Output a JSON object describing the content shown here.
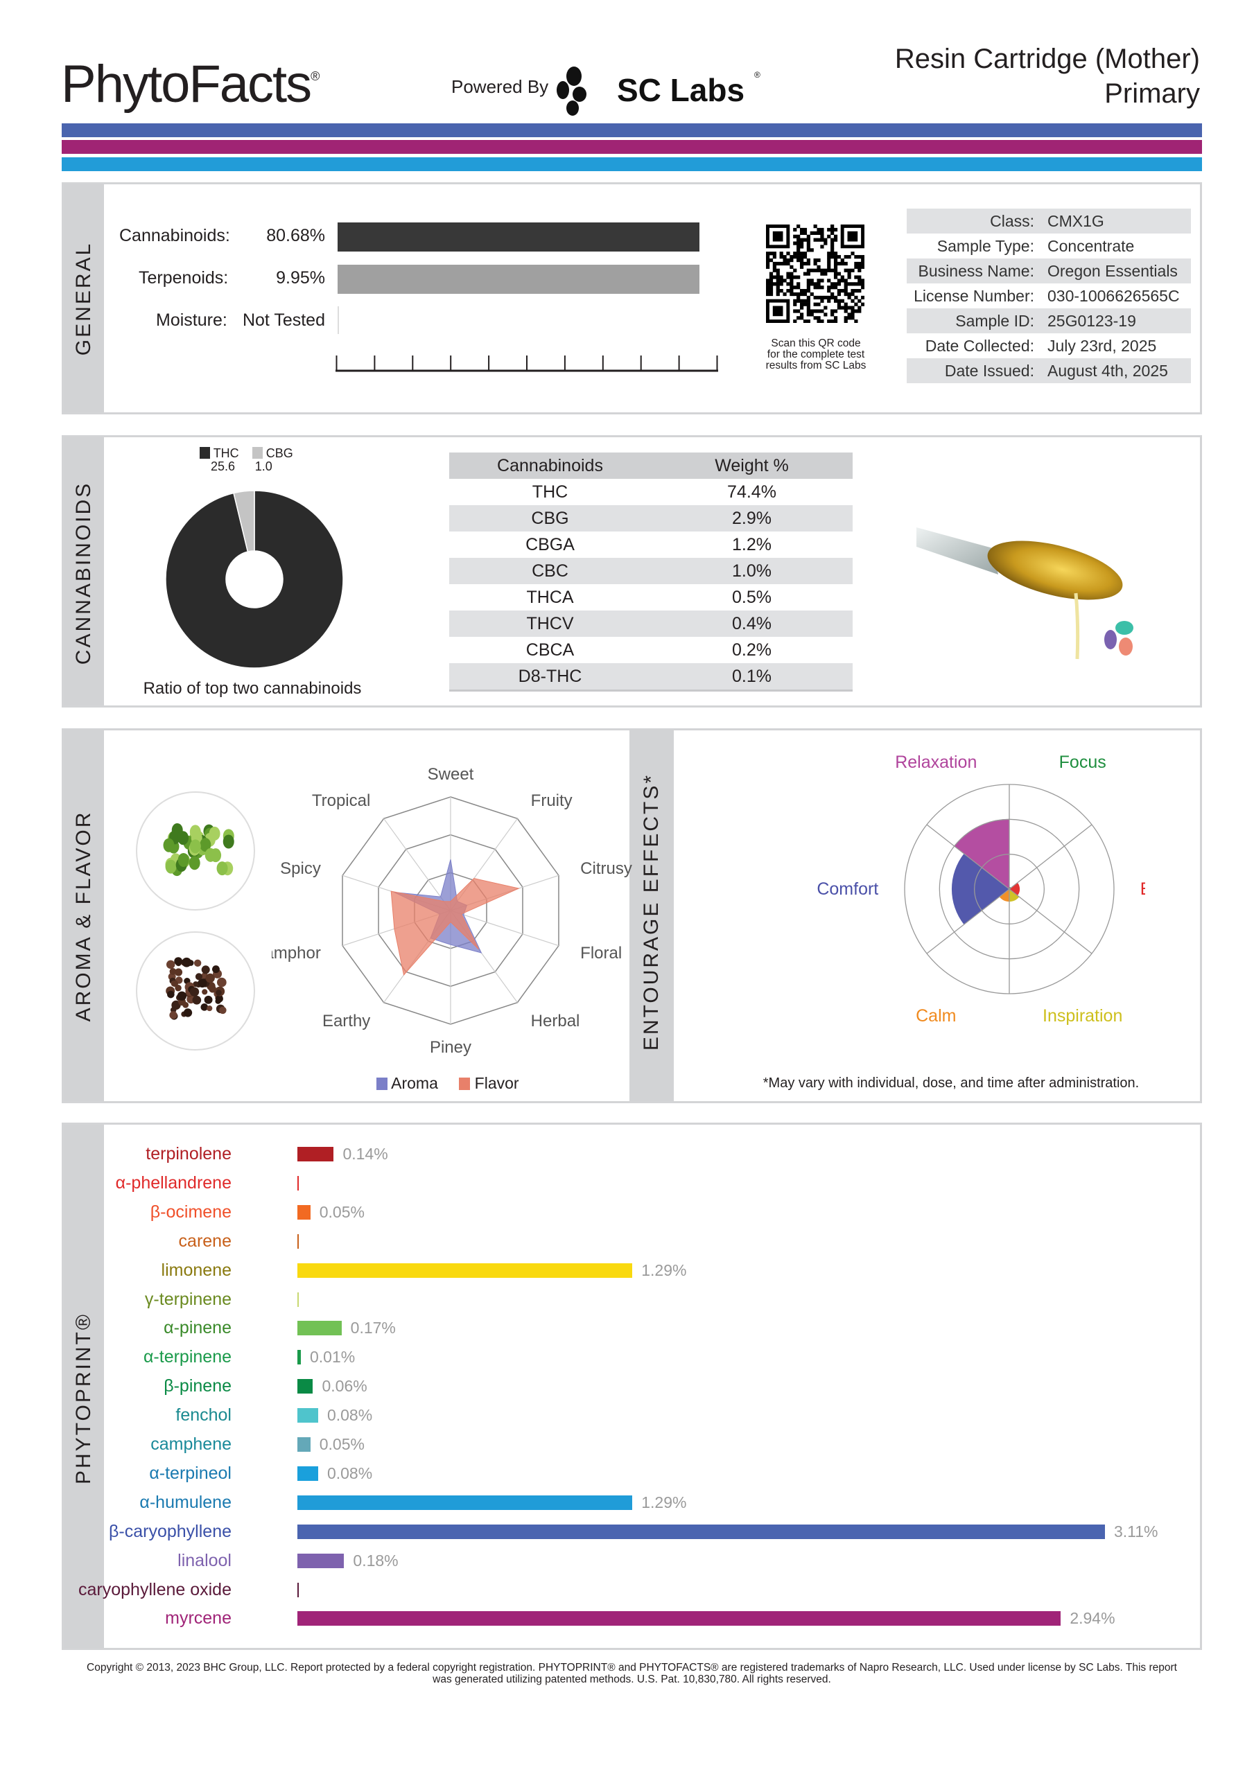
{
  "header": {
    "logo_text": "PhytoFacts",
    "logo_mark": "®",
    "powered_by": "Powered By",
    "lab_logo_text": "SC Labs",
    "lab_logo_mark": "®",
    "product_name": "Resin Cartridge (Mother)",
    "product_subtitle": "Primary",
    "stripe_colors": [
      "#4a64ae",
      "#a02474",
      "#229cd8"
    ]
  },
  "general": {
    "section_label": "GENERAL",
    "cannabinoids_label": "Cannabinoids:",
    "cannabinoids_value": "80.68%",
    "terpenoids_label": "Terpenoids:",
    "terpenoids_value": "9.95%",
    "moisture_label": "Moisture:",
    "moisture_value": "Not Tested",
    "qr_caption": [
      "Scan this QR code",
      "for the complete test",
      "results from SC Labs"
    ],
    "info": [
      {
        "label": "Class:",
        "value": "CMX1G"
      },
      {
        "label": "Sample Type:",
        "value": "Concentrate"
      },
      {
        "label": "Business Name:",
        "value": "Oregon Essentials"
      },
      {
        "label": "License Number:",
        "value": "030-1006626565C"
      },
      {
        "label": "Sample ID:",
        "value": "25G0123-19"
      },
      {
        "label": "Date Collected:",
        "value": "July 23rd, 2025"
      },
      {
        "label": "Date Issued:",
        "value": "August 4th, 2025"
      }
    ]
  },
  "cannabinoids": {
    "section_label": "CANNABINOIDS",
    "ratio_caption": "Ratio of top two cannabinoids",
    "ratio_legend": [
      {
        "name": "THC",
        "value": "25.6",
        "color": "#2b2b2b"
      },
      {
        "name": "CBG",
        "value": "1.0",
        "color": "#c4c4c4"
      }
    ],
    "table_headers": [
      "Cannabinoids",
      "Weight %"
    ],
    "table_rows": [
      [
        "THC",
        "74.4%"
      ],
      [
        "CBG",
        "2.9%"
      ],
      [
        "CBGA",
        "1.2%"
      ],
      [
        "CBC",
        "1.0%"
      ],
      [
        "THCA",
        "0.5%"
      ],
      [
        "THCV",
        "0.4%"
      ],
      [
        "CBCA",
        "0.2%"
      ],
      [
        "D8-THC",
        "0.1%"
      ]
    ]
  },
  "aroma": {
    "section_label": "AROMA & FLAVOR",
    "legend": [
      {
        "name": "Aroma",
        "color": "#7b7fc8"
      },
      {
        "name": "Flavor",
        "color": "#e8806a"
      }
    ]
  },
  "entourage": {
    "section_label": "ENTOURAGE EFFECTS*",
    "footnote": "*May vary with individual, dose, and time after administration."
  },
  "phytoprint": {
    "section_label": "PHYTOPRINT®"
  },
  "chart_data": [
    {
      "type": "radar",
      "axes": [
        "Sweet",
        "Fruity",
        "Citrusy",
        "Floral",
        "Herbal",
        "Piney",
        "Earthy",
        "Camphor",
        "Spicy",
        "Tropical"
      ],
      "range": [
        0,
        1
      ],
      "rings": 3,
      "series": [
        {
          "name": "Aroma",
          "color": "#7b7fc8",
          "values": [
            0.45,
            0.1,
            0.15,
            0.12,
            0.46,
            0.3,
            0.3,
            0.1,
            0.52,
            0.15
          ]
        },
        {
          "name": "Flavor",
          "color": "#e8806a",
          "values": [
            0.08,
            0.35,
            0.63,
            0.1,
            0.42,
            0.1,
            0.7,
            0.52,
            0.55,
            0.1
          ]
        }
      ]
    },
    {
      "type": "polar-area",
      "range": [
        0,
        1
      ],
      "rings": 3,
      "categories": [
        {
          "name": "Relaxation",
          "color": "#b0449c",
          "value": 0.67
        },
        {
          "name": "Focus",
          "color": "#1e8e3e",
          "value": 0.02
        },
        {
          "name": "Energy",
          "color": "#e02828",
          "value": 0.1
        },
        {
          "name": "Inspiration",
          "color": "#cdbf1c",
          "value": 0.12
        },
        {
          "name": "Calm",
          "color": "#f08a1e",
          "value": 0.12
        },
        {
          "name": "Comfort",
          "color": "#4a50a8",
          "value": 0.55
        }
      ]
    },
    {
      "type": "bar",
      "orientation": "horizontal",
      "xlim": [
        0,
        3.11
      ],
      "categories": [
        "terpinolene",
        "α-phellandrene",
        "β-ocimene",
        "carene",
        "limonene",
        "γ-terpinene",
        "α-pinene",
        "α-terpinene",
        "β-pinene",
        "fenchol",
        "camphene",
        "α-terpineol",
        "α-humulene",
        "β-caryophyllene",
        "linalool",
        "caryophyllene oxide",
        "myrcene"
      ],
      "values": [
        0.14,
        0,
        0.05,
        0,
        1.29,
        0,
        0.17,
        0.01,
        0.06,
        0.08,
        0.05,
        0.08,
        1.29,
        3.11,
        0.18,
        0,
        2.94
      ],
      "value_labels": [
        "0.14%",
        "",
        "0.05%",
        "",
        "1.29%",
        "",
        "0.17%",
        "0.01%",
        "0.06%",
        "0.08%",
        "0.05%",
        "0.08%",
        "1.29%",
        "3.11%",
        "0.18%",
        "",
        "2.94%"
      ],
      "bar_colors": [
        "#b01f24",
        "#e02a2a",
        "#f26a22",
        "#c8601a",
        "#f9d90f",
        "#c8d870",
        "#72c155",
        "#1a9a4a",
        "#0a8a45",
        "#4fc4cc",
        "#64a8b8",
        "#1aa0dc",
        "#209cd8",
        "#4a64b0",
        "#7e62ae",
        "#5a1a3a",
        "#a02478"
      ],
      "label_colors": [
        "#b01f24",
        "#e02a2a",
        "#f0502a",
        "#c8601a",
        "#8a7a10",
        "#6a8a20",
        "#3a8a2a",
        "#1a9a4a",
        "#0a8a45",
        "#1a8a90",
        "#1a8a9a",
        "#1a7ab0",
        "#1a7ab0",
        "#3a50a8",
        "#7e62ae",
        "#5a1a3a",
        "#a02478"
      ]
    }
  ],
  "footer": {
    "line1": "Copyright © 2013, 2023 BHC Group, LLC. Report protected by a federal copyright registration. PHYTOPRINT® and PHYTOFACTS® are registered trademarks of Napro Research, LLC. Used under license by SC Labs. This report",
    "line2": "was generated utilizing patented methods. U.S. Pat. 10,830,780. All rights reserved."
  }
}
